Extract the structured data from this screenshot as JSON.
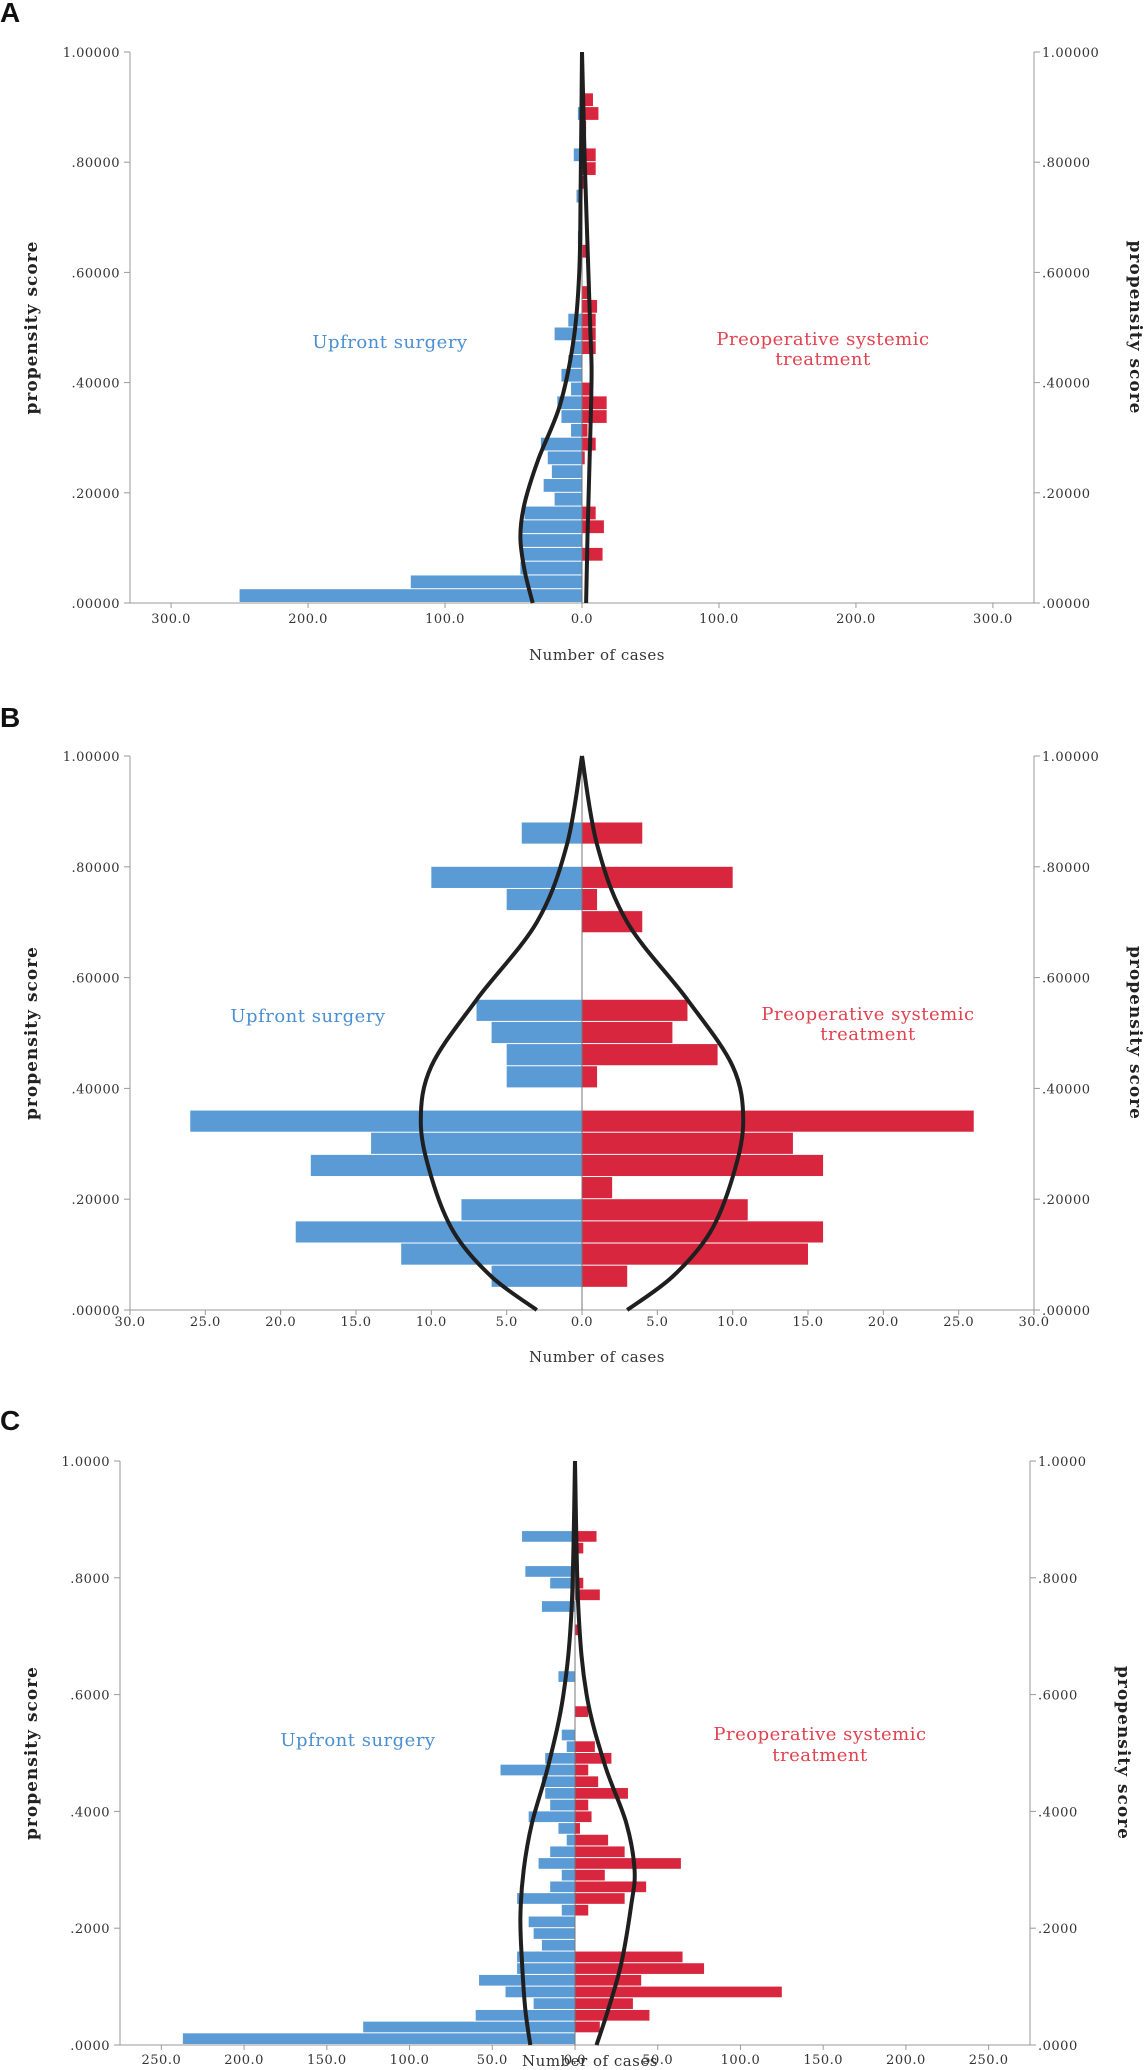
{
  "colors": {
    "left": "#5b9bd5",
    "right": "#d7263d",
    "left_text": "#4a8fd1",
    "right_text": "#e0434f",
    "curve": "#1f1f1f",
    "axis": "#999999"
  },
  "chart_data": [
    {
      "type": "bar",
      "panel_label": "A",
      "xlabel": "Number of cases",
      "ylabel_left": "propensity score",
      "ylabel_right": "propensity score",
      "xlim": [
        -330,
        330
      ],
      "ylim": [
        0,
        1
      ],
      "bin_width": 0.025,
      "x_ticks": [
        -300,
        -200,
        -100,
        0,
        100,
        200,
        300
      ],
      "x_tick_labels": [
        "300.0",
        "200.0",
        "100.0",
        "0.0",
        "100.0",
        "200.0",
        "300.0"
      ],
      "y_ticks": [
        0,
        0.2,
        0.4,
        0.6,
        0.8,
        1.0
      ],
      "y_tick_labels": [
        ".00000",
        ".20000",
        ".40000",
        ".60000",
        ".80000",
        "1.00000"
      ],
      "left_annotation": [
        "Upfront surgery"
      ],
      "right_annotation": [
        "Preoperative systemic",
        "treatment"
      ],
      "left_series": {
        "name": "Upfront surgery",
        "bins": [
          {
            "y": 0.0,
            "value": 250
          },
          {
            "y": 0.025,
            "value": 125
          },
          {
            "y": 0.05,
            "value": 45
          },
          {
            "y": 0.075,
            "value": 44
          },
          {
            "y": 0.1,
            "value": 45
          },
          {
            "y": 0.125,
            "value": 45
          },
          {
            "y": 0.15,
            "value": 42
          },
          {
            "y": 0.175,
            "value": 20
          },
          {
            "y": 0.2,
            "value": 28
          },
          {
            "y": 0.225,
            "value": 22
          },
          {
            "y": 0.25,
            "value": 25
          },
          {
            "y": 0.275,
            "value": 30
          },
          {
            "y": 0.3,
            "value": 8
          },
          {
            "y": 0.325,
            "value": 15
          },
          {
            "y": 0.35,
            "value": 18
          },
          {
            "y": 0.375,
            "value": 8
          },
          {
            "y": 0.4,
            "value": 15
          },
          {
            "y": 0.425,
            "value": 10
          },
          {
            "y": 0.45,
            "value": 8
          },
          {
            "y": 0.475,
            "value": 20
          },
          {
            "y": 0.5,
            "value": 10
          },
          {
            "y": 0.65,
            "value": 3
          },
          {
            "y": 0.725,
            "value": 4
          },
          {
            "y": 0.8,
            "value": 6
          },
          {
            "y": 0.875,
            "value": 3
          }
        ]
      },
      "right_series": {
        "name": "Preoperative systemic treatment",
        "bins": [
          {
            "y": 0.075,
            "value": 15
          },
          {
            "y": 0.125,
            "value": 16
          },
          {
            "y": 0.15,
            "value": 10
          },
          {
            "y": 0.25,
            "value": 2
          },
          {
            "y": 0.275,
            "value": 10
          },
          {
            "y": 0.3,
            "value": 4
          },
          {
            "y": 0.325,
            "value": 18
          },
          {
            "y": 0.35,
            "value": 18
          },
          {
            "y": 0.375,
            "value": 7
          },
          {
            "y": 0.45,
            "value": 10
          },
          {
            "y": 0.475,
            "value": 10
          },
          {
            "y": 0.5,
            "value": 10
          },
          {
            "y": 0.525,
            "value": 11
          },
          {
            "y": 0.55,
            "value": 6
          },
          {
            "y": 0.625,
            "value": 3
          },
          {
            "y": 0.75,
            "value": 3
          },
          {
            "y": 0.775,
            "value": 10
          },
          {
            "y": 0.8,
            "value": 10
          },
          {
            "y": 0.85,
            "value": 3
          },
          {
            "y": 0.875,
            "value": 12
          },
          {
            "y": 0.9,
            "value": 8
          }
        ]
      },
      "density_left": [
        [
          -36,
          0
        ],
        [
          -42,
          0.06
        ],
        [
          -45,
          0.12
        ],
        [
          -42,
          0.18
        ],
        [
          -32,
          0.26
        ],
        [
          -16,
          0.36
        ],
        [
          -6,
          0.48
        ],
        [
          -2,
          0.6
        ],
        [
          -1,
          0.75
        ],
        [
          0,
          1.0
        ]
      ],
      "density_right": [
        [
          3,
          0
        ],
        [
          4,
          0.12
        ],
        [
          6,
          0.3
        ],
        [
          7,
          0.42
        ],
        [
          6,
          0.5
        ],
        [
          4,
          0.65
        ],
        [
          2,
          0.8
        ],
        [
          1,
          0.9
        ],
        [
          0,
          1.0
        ]
      ]
    },
    {
      "type": "bar",
      "panel_label": "B",
      "xlabel": "Number of cases",
      "ylabel_left": "propensity score",
      "ylabel_right": "propensity score",
      "xlim": [
        -30,
        30
      ],
      "ylim": [
        0,
        1
      ],
      "bin_width": 0.04,
      "x_ticks": [
        -30,
        -25,
        -20,
        -15,
        -10,
        -5,
        0,
        5,
        10,
        15,
        20,
        25,
        30
      ],
      "x_tick_labels": [
        "30.0",
        "25.0",
        "20.0",
        "15.0",
        "10.0",
        "5.0",
        "0.0",
        "5.0",
        "10.0",
        "15.0",
        "20.0",
        "25.0",
        "30.0"
      ],
      "y_ticks": [
        0,
        0.2,
        0.4,
        0.6,
        0.8,
        1.0
      ],
      "y_tick_labels": [
        ".00000",
        ".20000",
        ".40000",
        ".60000",
        ".80000",
        "1.00000"
      ],
      "left_annotation": [
        "Upfront surgery"
      ],
      "right_annotation": [
        "Preoperative systemic",
        "treatment"
      ],
      "left_series": {
        "name": "Upfront surgery",
        "bins": [
          {
            "y": 0.04,
            "value": 6
          },
          {
            "y": 0.08,
            "value": 12
          },
          {
            "y": 0.12,
            "value": 19
          },
          {
            "y": 0.16,
            "value": 8
          },
          {
            "y": 0.24,
            "value": 18
          },
          {
            "y": 0.28,
            "value": 14
          },
          {
            "y": 0.32,
            "value": 26
          },
          {
            "y": 0.4,
            "value": 5
          },
          {
            "y": 0.44,
            "value": 5
          },
          {
            "y": 0.48,
            "value": 6
          },
          {
            "y": 0.52,
            "value": 7
          },
          {
            "y": 0.72,
            "value": 5
          },
          {
            "y": 0.76,
            "value": 10
          },
          {
            "y": 0.84,
            "value": 4
          }
        ]
      },
      "right_series": {
        "name": "Preoperative systemic treatment",
        "bins": [
          {
            "y": 0.04,
            "value": 3
          },
          {
            "y": 0.08,
            "value": 15
          },
          {
            "y": 0.12,
            "value": 16
          },
          {
            "y": 0.16,
            "value": 11
          },
          {
            "y": 0.2,
            "value": 2
          },
          {
            "y": 0.24,
            "value": 16
          },
          {
            "y": 0.28,
            "value": 14
          },
          {
            "y": 0.32,
            "value": 26
          },
          {
            "y": 0.4,
            "value": 1
          },
          {
            "y": 0.44,
            "value": 9
          },
          {
            "y": 0.48,
            "value": 6
          },
          {
            "y": 0.52,
            "value": 7
          },
          {
            "y": 0.68,
            "value": 4
          },
          {
            "y": 0.72,
            "value": 1
          },
          {
            "y": 0.76,
            "value": 10
          },
          {
            "y": 0.84,
            "value": 4
          }
        ]
      },
      "density_left": [
        [
          -3,
          0
        ],
        [
          -6,
          0.06
        ],
        [
          -8.5,
          0.14
        ],
        [
          -10,
          0.24
        ],
        [
          -10.7,
          0.34
        ],
        [
          -10,
          0.44
        ],
        [
          -7,
          0.56
        ],
        [
          -3,
          0.7
        ],
        [
          -1,
          0.84
        ],
        [
          0,
          1.0
        ]
      ],
      "density_right": [
        [
          3,
          0
        ],
        [
          6,
          0.06
        ],
        [
          8.5,
          0.14
        ],
        [
          10,
          0.24
        ],
        [
          10.7,
          0.34
        ],
        [
          10,
          0.44
        ],
        [
          7,
          0.56
        ],
        [
          3,
          0.7
        ],
        [
          1,
          0.84
        ],
        [
          0,
          1.0
        ]
      ]
    },
    {
      "type": "bar",
      "panel_label": "C",
      "xlabel": "Number of cases",
      "ylabel_left": "propensity score",
      "ylabel_right": "propensity score",
      "xlim": [
        -275,
        275
      ],
      "ylim": [
        0,
        1
      ],
      "bin_width": 0.02,
      "x_ticks": [
        -250,
        -200,
        -150,
        -100,
        -50,
        0,
        50,
        100,
        150,
        200,
        250
      ],
      "x_tick_labels": [
        "250.0",
        "200.0",
        "150.0",
        "100.0",
        "50.0",
        "0.0",
        "50.0",
        "100.0",
        "150.0",
        "200.0",
        "250.0"
      ],
      "y_ticks": [
        0,
        0.2,
        0.4,
        0.6,
        0.8,
        1.0
      ],
      "y_tick_labels": [
        ".0000",
        ".2000",
        ".4000",
        ".6000",
        ".8000",
        "1.0000"
      ],
      "left_annotation": [
        "Upfront surgery"
      ],
      "right_annotation": [
        "Preoperative systemic",
        "treatment"
      ],
      "left_series": {
        "name": "Upfront surgery",
        "bins": [
          {
            "y": 0.0,
            "value": 237
          },
          {
            "y": 0.02,
            "value": 128
          },
          {
            "y": 0.04,
            "value": 60
          },
          {
            "y": 0.06,
            "value": 25
          },
          {
            "y": 0.08,
            "value": 42
          },
          {
            "y": 0.1,
            "value": 58
          },
          {
            "y": 0.12,
            "value": 35
          },
          {
            "y": 0.14,
            "value": 35
          },
          {
            "y": 0.16,
            "value": 20
          },
          {
            "y": 0.18,
            "value": 25
          },
          {
            "y": 0.2,
            "value": 28
          },
          {
            "y": 0.22,
            "value": 8
          },
          {
            "y": 0.24,
            "value": 35
          },
          {
            "y": 0.26,
            "value": 15
          },
          {
            "y": 0.28,
            "value": 8
          },
          {
            "y": 0.3,
            "value": 22
          },
          {
            "y": 0.32,
            "value": 15
          },
          {
            "y": 0.34,
            "value": 5
          },
          {
            "y": 0.36,
            "value": 10
          },
          {
            "y": 0.38,
            "value": 28
          },
          {
            "y": 0.4,
            "value": 15
          },
          {
            "y": 0.42,
            "value": 18
          },
          {
            "y": 0.44,
            "value": 20
          },
          {
            "y": 0.46,
            "value": 45
          },
          {
            "y": 0.48,
            "value": 18
          },
          {
            "y": 0.5,
            "value": 5
          },
          {
            "y": 0.52,
            "value": 8
          },
          {
            "y": 0.62,
            "value": 10
          },
          {
            "y": 0.74,
            "value": 20
          },
          {
            "y": 0.78,
            "value": 15
          },
          {
            "y": 0.8,
            "value": 30
          },
          {
            "y": 0.86,
            "value": 32
          }
        ]
      },
      "right_series": {
        "name": "Preoperative systemic treatment",
        "bins": [
          {
            "y": 0.02,
            "value": 15
          },
          {
            "y": 0.04,
            "value": 45
          },
          {
            "y": 0.06,
            "value": 35
          },
          {
            "y": 0.08,
            "value": 125
          },
          {
            "y": 0.1,
            "value": 40
          },
          {
            "y": 0.12,
            "value": 78
          },
          {
            "y": 0.14,
            "value": 65
          },
          {
            "y": 0.22,
            "value": 8
          },
          {
            "y": 0.24,
            "value": 30
          },
          {
            "y": 0.26,
            "value": 43
          },
          {
            "y": 0.28,
            "value": 18
          },
          {
            "y": 0.3,
            "value": 64
          },
          {
            "y": 0.32,
            "value": 30
          },
          {
            "y": 0.34,
            "value": 20
          },
          {
            "y": 0.36,
            "value": 3
          },
          {
            "y": 0.38,
            "value": 10
          },
          {
            "y": 0.4,
            "value": 8
          },
          {
            "y": 0.42,
            "value": 32
          },
          {
            "y": 0.44,
            "value": 14
          },
          {
            "y": 0.46,
            "value": 8
          },
          {
            "y": 0.48,
            "value": 22
          },
          {
            "y": 0.5,
            "value": 12
          },
          {
            "y": 0.56,
            "value": 8
          },
          {
            "y": 0.7,
            "value": 3
          },
          {
            "y": 0.76,
            "value": 15
          },
          {
            "y": 0.78,
            "value": 5
          },
          {
            "y": 0.84,
            "value": 5
          },
          {
            "y": 0.86,
            "value": 13
          }
        ]
      },
      "density_left": [
        [
          -27,
          0
        ],
        [
          -30,
          0.06
        ],
        [
          -32,
          0.14
        ],
        [
          -33,
          0.22
        ],
        [
          -31,
          0.3
        ],
        [
          -26,
          0.38
        ],
        [
          -16,
          0.48
        ],
        [
          -7,
          0.6
        ],
        [
          -2,
          0.75
        ],
        [
          0,
          1.0
        ]
      ],
      "density_right": [
        [
          13,
          0
        ],
        [
          20,
          0.06
        ],
        [
          28,
          0.14
        ],
        [
          34,
          0.24
        ],
        [
          36,
          0.3
        ],
        [
          31,
          0.38
        ],
        [
          18,
          0.48
        ],
        [
          7,
          0.6
        ],
        [
          2,
          0.75
        ],
        [
          0,
          1.0
        ]
      ]
    }
  ]
}
